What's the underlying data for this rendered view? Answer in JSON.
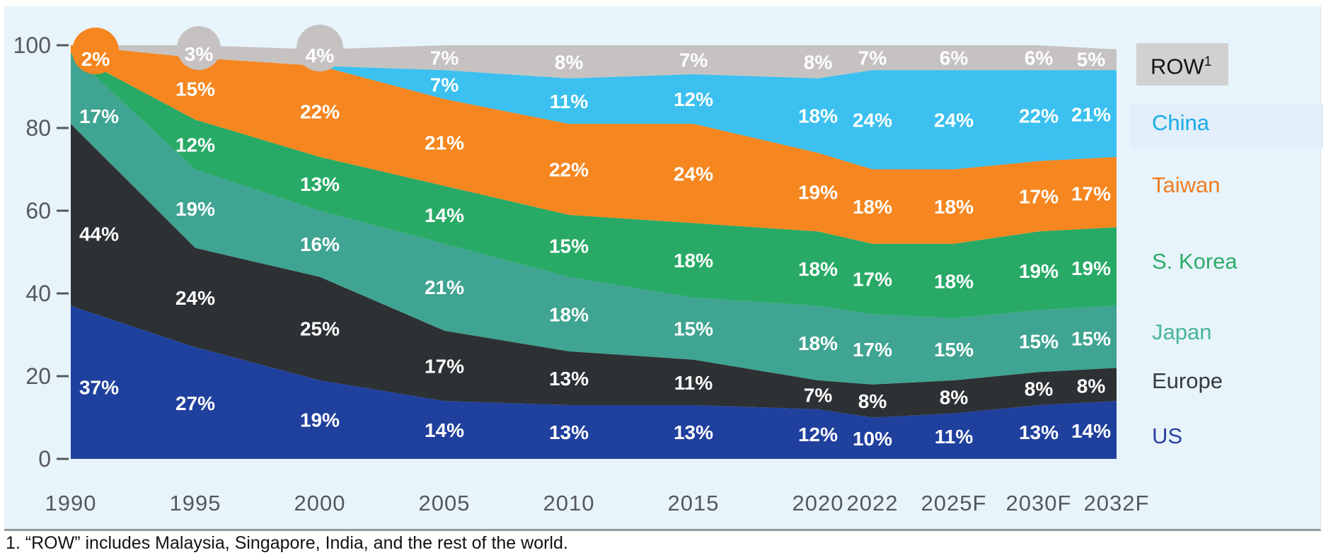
{
  "chart_data": {
    "type": "area",
    "stacked": true,
    "unit": "%",
    "grid": false,
    "legend_position": "right",
    "years": [
      "1990",
      "1995",
      "2000",
      "2005",
      "2010",
      "2015",
      "2020",
      "2022",
      "2025F",
      "2030F",
      "2032F"
    ],
    "series": [
      {
        "name": "US",
        "color": "#20409d",
        "legend_color": "#2a3f9d",
        "values": [
          37,
          27,
          19,
          14,
          13,
          13,
          12,
          10,
          11,
          13,
          14
        ]
      },
      {
        "name": "Europe",
        "color": "#2d3134",
        "legend_color": "#333a3e",
        "values": [
          44,
          24,
          25,
          17,
          13,
          11,
          7,
          8,
          8,
          8,
          8
        ]
      },
      {
        "name": "Japan",
        "color": "#3fa491",
        "legend_color": "#48b694",
        "values": [
          17,
          19,
          16,
          21,
          18,
          15,
          18,
          17,
          15,
          15,
          15
        ]
      },
      {
        "name": "S. Korea",
        "color": "#28aa66",
        "legend_color": "#2eab6b",
        "values": [
          0,
          12,
          13,
          14,
          15,
          18,
          18,
          17,
          18,
          19,
          19
        ]
      },
      {
        "name": "Taiwan",
        "color": "#f6861f",
        "legend_color": "#ef7d24",
        "values": [
          2,
          15,
          22,
          21,
          22,
          24,
          19,
          18,
          18,
          17,
          17
        ]
      },
      {
        "name": "China",
        "color": "#3bc0ef",
        "legend_color": "#1aabe8",
        "values": [
          0,
          0,
          0,
          7,
          11,
          12,
          18,
          24,
          24,
          22,
          21
        ]
      },
      {
        "name": "ROW",
        "color": "#c6c2c2",
        "legend_color": "#111417",
        "footnote_marker": "1",
        "values": [
          0,
          3,
          4,
          7,
          8,
          7,
          8,
          7,
          6,
          6,
          5
        ]
      }
    ],
    "bubbles": [
      {
        "year_index": 0,
        "series": "Taiwan"
      },
      {
        "year_index": 1,
        "series": "ROW"
      },
      {
        "year_index": 2,
        "series": "ROW"
      }
    ],
    "y_axis": {
      "range": [
        0,
        100
      ],
      "ticks": [
        0,
        20,
        40,
        60,
        80,
        100
      ]
    },
    "legend_order_top_to_bottom": [
      "ROW",
      "China",
      "Taiwan",
      "S. Korea",
      "Japan",
      "Europe",
      "US"
    ]
  },
  "footnote": "1. “ROW” includes Malaysia, Singapore, India, and the rest of the world.",
  "colors": {
    "panel_bg": "#e8f4fb",
    "axis_text": "#54585a",
    "value_label_text": "#ffffff",
    "separator_line": "#94999c",
    "row_chip_bg": "#d2d0d0"
  }
}
